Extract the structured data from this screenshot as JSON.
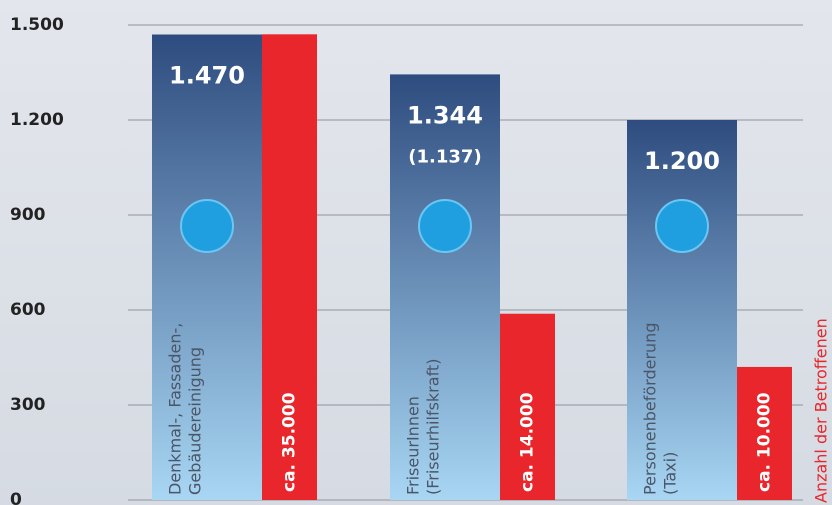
{
  "chart_data": {
    "type": "bar",
    "categories": [
      [
        "Denkmal-, Fassaden-,",
        "Gebäudereinigung"
      ],
      [
        "FriseurInnen",
        "(Friseurhilfskraft)"
      ],
      [
        "Personenbeförderung",
        "(Taxi)"
      ]
    ],
    "series": [
      {
        "color": "#2e4c7f",
        "values": [
          1470,
          1344,
          1200
        ],
        "value_labels": [
          "1.470",
          "1.344",
          "1.200"
        ],
        "secondary_labels": [
          null,
          "(1.137)",
          null
        ]
      },
      {
        "color": "#e8262b",
        "axis": "y2",
        "values": [
          35000,
          14000,
          10000
        ],
        "value_labels": [
          "ca. 35.000",
          "ca. 14.000",
          "ca. 10.000"
        ]
      }
    ],
    "ylim": [
      0,
      1500
    ],
    "yticks": [
      0,
      {
        "value": 300,
        "label": "300"
      },
      {
        "value": 600,
        "label": "600"
      },
      {
        "value": 900,
        "label": "900"
      },
      {
        "value": 1200,
        "label": "1.200"
      },
      {
        "value": 1500,
        "label": "1.500"
      }
    ],
    "y2lim": [
      0,
      35700
    ],
    "y2label": "Anzahl der Betroffenen",
    "grid": true
  }
}
